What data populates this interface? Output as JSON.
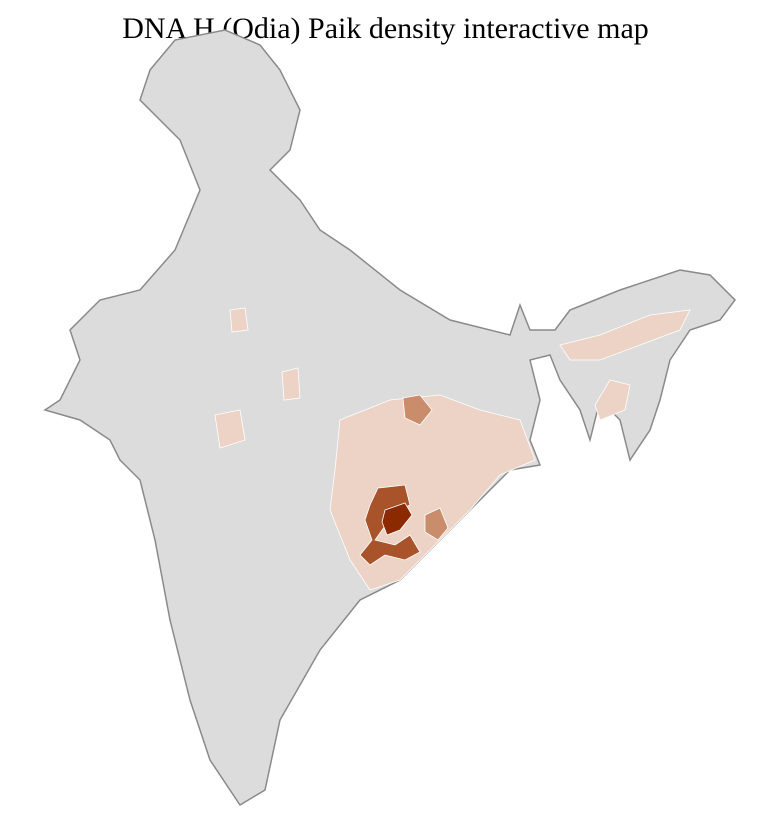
{
  "title": "DNA H (Odia) Paik density interactive map",
  "colors": {
    "no_data": "#dcdcdc",
    "border": "#8a8a8a",
    "low": "#ecd3c5",
    "medium": "#c98d6c",
    "high": "#a9532b",
    "highest": "#8b2a00"
  }
}
